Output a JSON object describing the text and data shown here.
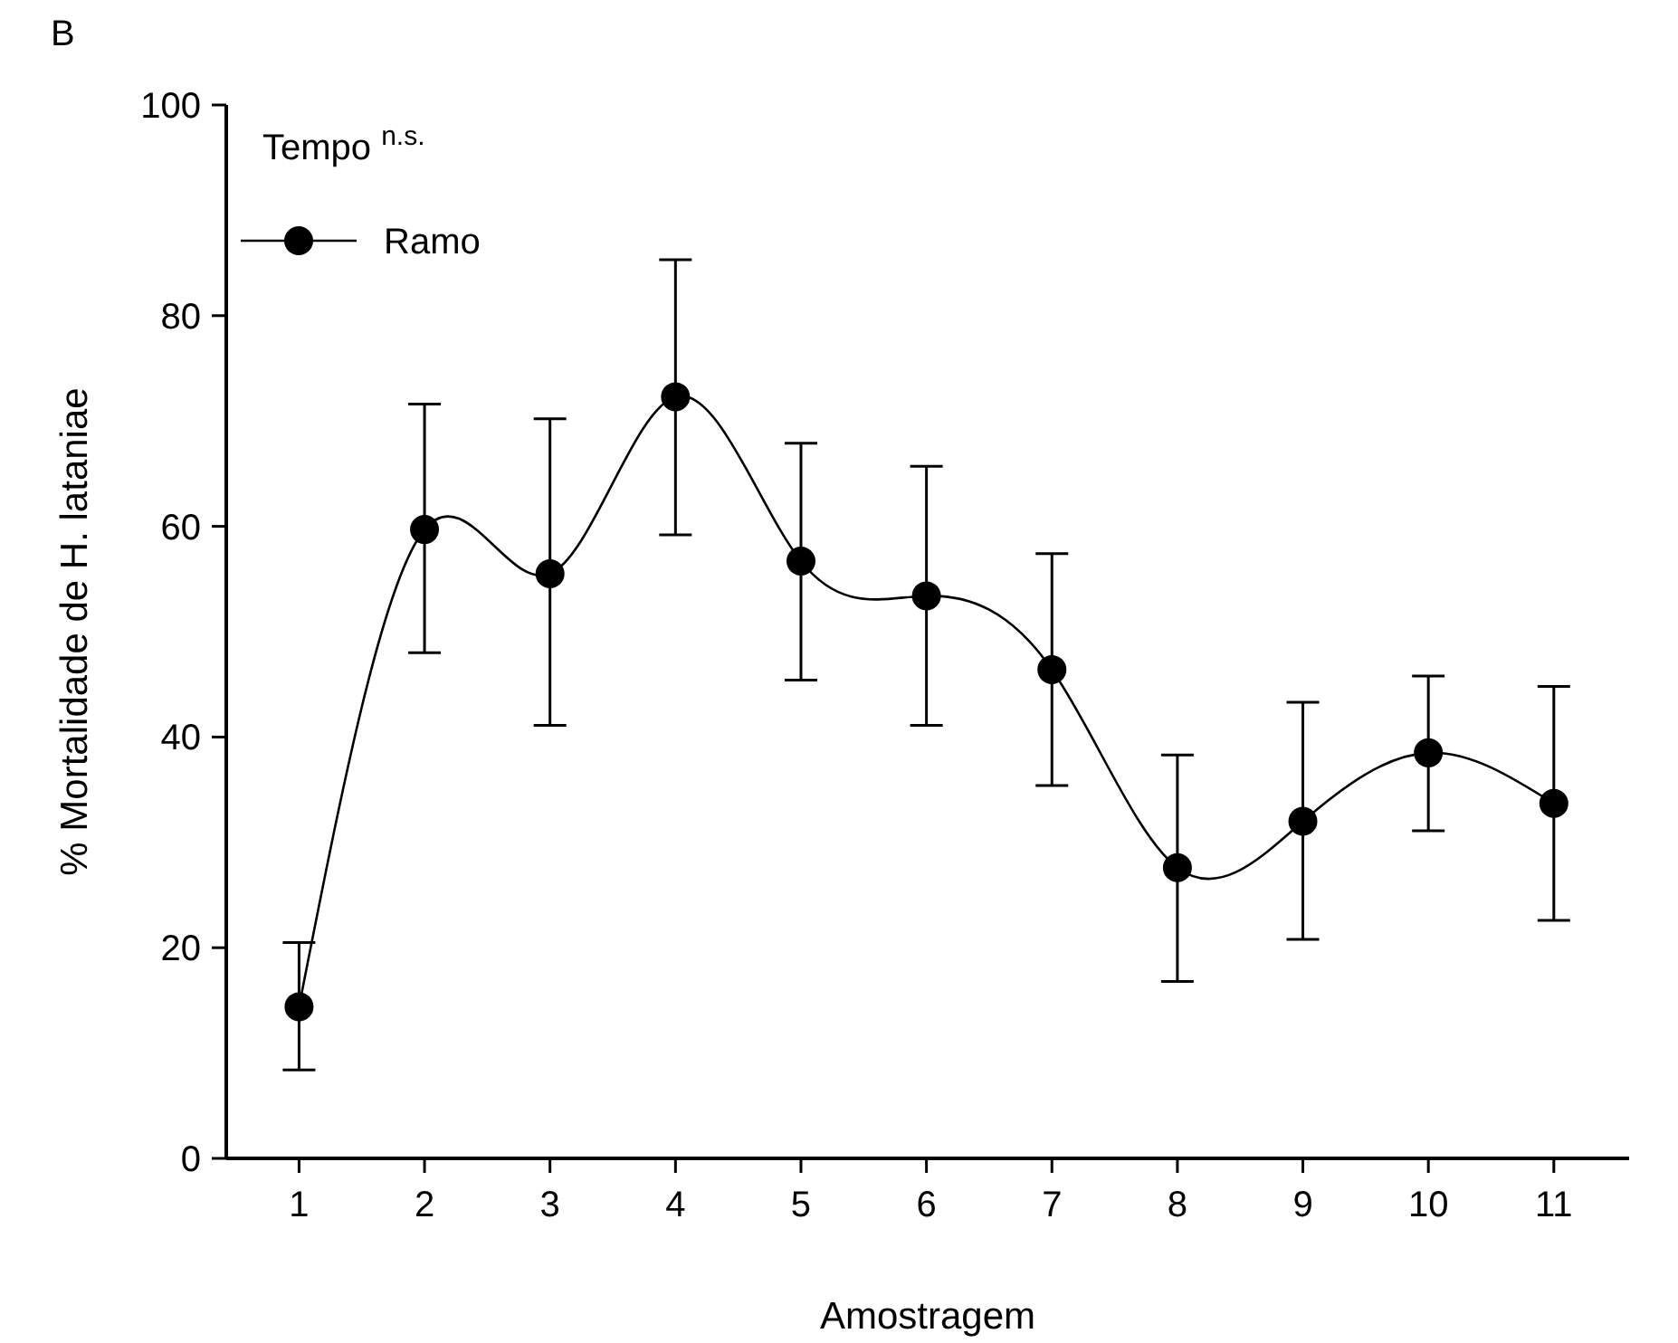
{
  "chart_data": {
    "type": "line",
    "xlabel": "Amostragem",
    "ylabel": "% Mortalidade de H. lataniae",
    "legend_title": "Tempo $^{n.s.}$",
    "annotations": [
      "B"
    ],
    "x": [
      1,
      2,
      3,
      4,
      5,
      6,
      7,
      8,
      9,
      10,
      11
    ],
    "xlim": [
      0.42,
      11.6
    ],
    "xticks": [
      1,
      2,
      3,
      4,
      5,
      6,
      7,
      8,
      9,
      10,
      11
    ],
    "ylim": [
      0,
      100
    ],
    "yticks": [
      0,
      20,
      40,
      60,
      80,
      100
    ],
    "series": [
      {
        "name": "Ramo",
        "color": "#000000",
        "values": [
          14.4,
          59.7,
          55.5,
          72.3,
          56.7,
          53.4,
          46.4,
          27.6,
          32.0,
          38.5,
          33.7
        ],
        "errors": [
          [
            8.4,
            20.5
          ],
          [
            48.0,
            71.6
          ],
          [
            41.1,
            70.2
          ],
          [
            59.2,
            85.3
          ],
          [
            45.4,
            67.9
          ],
          [
            41.1,
            65.7
          ],
          [
            35.4,
            57.4
          ],
          [
            16.8,
            38.3
          ],
          [
            20.8,
            43.3
          ],
          [
            31.1,
            45.8
          ],
          [
            22.6,
            44.8
          ]
        ]
      }
    ],
    "marker": "circle",
    "line_style": "solid",
    "legend": "top left",
    "grid": false
  }
}
